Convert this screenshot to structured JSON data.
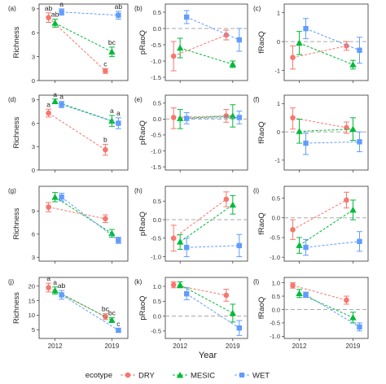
{
  "x_axis_title": "Year",
  "x_tick_labels": [
    "2012",
    "2019"
  ],
  "legend": {
    "title": "ecotype",
    "entries": [
      {
        "label": "DRY",
        "color": "#f8766d",
        "shape": "circle"
      },
      {
        "label": "MESIC",
        "color": "#00ba38",
        "shape": "triangle"
      },
      {
        "label": "WET",
        "color": "#619cff",
        "shape": "square"
      }
    ]
  },
  "chart_data": [
    {
      "id": "a",
      "panel_label": "(a)",
      "type": "scatter",
      "ylabel": "Richness",
      "yticks": [
        {
          "v": 0,
          "t": "0"
        },
        {
          "v": 3,
          "t": "3"
        },
        {
          "v": 6,
          "t": "6"
        },
        {
          "v": 9,
          "t": "9"
        }
      ],
      "ylim": [
        0,
        9.6
      ],
      "dashed_zero": false,
      "series": [
        {
          "name": "DRY",
          "x": [
            0,
            1
          ],
          "y": [
            7.9,
            1.2
          ],
          "lo": [
            7.3,
            0.9
          ],
          "hi": [
            8.5,
            1.5
          ],
          "letters": [
            "ab",
            "c"
          ]
        },
        {
          "name": "MESIC",
          "x": [
            0,
            1
          ],
          "y": [
            7.2,
            3.6
          ],
          "lo": [
            6.7,
            3.0
          ],
          "hi": [
            7.7,
            4.2
          ],
          "letters": [
            "ab",
            "bc"
          ]
        },
        {
          "name": "WET",
          "x": [
            0,
            1
          ],
          "y": [
            8.6,
            8.2
          ],
          "lo": [
            8.2,
            7.7
          ],
          "hi": [
            9.0,
            8.7
          ],
          "letters": [
            "a",
            "ab"
          ]
        }
      ]
    },
    {
      "id": "b",
      "panel_label": "(b)",
      "type": "scatter",
      "ylabel": "pRaoQ",
      "yticks": [
        {
          "v": 0.5,
          "t": "0.5"
        },
        {
          "v": 0,
          "t": "0.0"
        },
        {
          "v": -0.5,
          "t": "-0.5"
        },
        {
          "v": -1.0,
          "t": "-1.0"
        },
        {
          "v": -1.5,
          "t": "-1.5"
        }
      ],
      "ylim": [
        -1.6,
        0.75
      ],
      "dashed_zero": true,
      "series": [
        {
          "name": "DRY",
          "x": [
            0,
            1
          ],
          "y": [
            -0.85,
            -0.2
          ],
          "lo": [
            -1.3,
            -0.35
          ],
          "hi": [
            -0.4,
            -0.05
          ]
        },
        {
          "name": "MESIC",
          "x": [
            0,
            1
          ],
          "y": [
            -0.6,
            -1.1
          ],
          "lo": [
            -0.9,
            -1.2
          ],
          "hi": [
            -0.3,
            -1.0
          ]
        },
        {
          "name": "WET",
          "x": [
            0,
            1
          ],
          "y": [
            0.35,
            -0.35
          ],
          "lo": [
            0.15,
            -0.7
          ],
          "hi": [
            0.55,
            0.0
          ]
        }
      ]
    },
    {
      "id": "c",
      "panel_label": "(c)",
      "type": "scatter",
      "ylabel": "fRaoQ",
      "yticks": [
        {
          "v": 1,
          "t": "1"
        },
        {
          "v": 0,
          "t": "0"
        },
        {
          "v": -1,
          "t": "-1"
        }
      ],
      "ylim": [
        -1.35,
        1.3
      ],
      "dashed_zero": true,
      "series": [
        {
          "name": "DRY",
          "x": [
            0,
            1
          ],
          "y": [
            -0.55,
            -0.15
          ],
          "lo": [
            -0.95,
            -0.3
          ],
          "hi": [
            -0.15,
            0.0
          ]
        },
        {
          "name": "MESIC",
          "x": [
            0,
            1
          ],
          "y": [
            -0.05,
            -0.8
          ],
          "lo": [
            -0.45,
            -0.95
          ],
          "hi": [
            0.35,
            -0.65
          ]
        },
        {
          "name": "WET",
          "x": [
            0,
            1
          ],
          "y": [
            0.45,
            -0.3
          ],
          "lo": [
            0.1,
            -0.75
          ],
          "hi": [
            0.8,
            0.15
          ]
        }
      ]
    },
    {
      "id": "d",
      "panel_label": "(d)",
      "type": "scatter",
      "ylabel": "Richness",
      "yticks": [
        {
          "v": 0,
          "t": "0"
        },
        {
          "v": 3,
          "t": "3"
        },
        {
          "v": 6,
          "t": "6"
        },
        {
          "v": 9,
          "t": "9"
        }
      ],
      "ylim": [
        0,
        9.6
      ],
      "dashed_zero": false,
      "series": [
        {
          "name": "DRY",
          "x": [
            0,
            1
          ],
          "y": [
            7.3,
            2.6
          ],
          "lo": [
            6.8,
            1.9
          ],
          "hi": [
            7.8,
            3.3
          ],
          "letters": [
            "a",
            "b"
          ]
        },
        {
          "name": "MESIC",
          "x": [
            0,
            1
          ],
          "y": [
            8.8,
            6.3
          ],
          "lo": [
            8.5,
            5.6
          ],
          "hi": [
            9.1,
            7.0
          ],
          "letters": [
            "a",
            "a"
          ]
        },
        {
          "name": "WET",
          "x": [
            0,
            1
          ],
          "y": [
            8.4,
            6.0
          ],
          "lo": [
            8.0,
            5.3
          ],
          "hi": [
            8.8,
            6.7
          ],
          "letters": [
            "a",
            "a"
          ]
        }
      ]
    },
    {
      "id": "e",
      "panel_label": "(e)",
      "type": "scatter",
      "ylabel": "pRaoQ",
      "yticks": [
        {
          "v": 0.5,
          "t": "0.5"
        },
        {
          "v": 0,
          "t": "0.0"
        },
        {
          "v": -0.5,
          "t": "-0.5"
        },
        {
          "v": -1.0,
          "t": "-1.0"
        },
        {
          "v": -1.5,
          "t": "-1.5"
        }
      ],
      "ylim": [
        -1.6,
        0.75
      ],
      "dashed_zero": true,
      "series": [
        {
          "name": "DRY",
          "x": [
            0,
            1
          ],
          "y": [
            0.05,
            0.1
          ],
          "lo": [
            -0.3,
            -0.1
          ],
          "hi": [
            0.35,
            0.3
          ]
        },
        {
          "name": "MESIC",
          "x": [
            0,
            1
          ],
          "y": [
            0.02,
            0.1
          ],
          "lo": [
            -0.3,
            -0.25
          ],
          "hi": [
            0.3,
            0.45
          ]
        },
        {
          "name": "WET",
          "x": [
            0,
            1
          ],
          "y": [
            0.02,
            0.05
          ],
          "lo": [
            -0.15,
            -0.15
          ],
          "hi": [
            0.2,
            0.25
          ]
        }
      ]
    },
    {
      "id": "f",
      "panel_label": "(f)",
      "type": "scatter",
      "ylabel": "fRaoQ",
      "yticks": [
        {
          "v": 1,
          "t": "1"
        },
        {
          "v": 0,
          "t": "0"
        },
        {
          "v": -1,
          "t": "-1"
        }
      ],
      "ylim": [
        -1.35,
        1.3
      ],
      "dashed_zero": true,
      "series": [
        {
          "name": "DRY",
          "x": [
            0,
            1
          ],
          "y": [
            0.5,
            0.15
          ],
          "lo": [
            0.1,
            -0.05
          ],
          "hi": [
            0.85,
            0.35
          ]
        },
        {
          "name": "MESIC",
          "x": [
            0,
            1
          ],
          "y": [
            0.02,
            0.1
          ],
          "lo": [
            -0.4,
            -0.3
          ],
          "hi": [
            0.45,
            0.5
          ]
        },
        {
          "name": "WET",
          "x": [
            0,
            1
          ],
          "y": [
            -0.4,
            -0.35
          ],
          "lo": [
            -0.8,
            -0.7
          ],
          "hi": [
            -0.05,
            0.0
          ]
        }
      ]
    },
    {
      "id": "g",
      "panel_label": "(g)",
      "type": "scatter",
      "ylabel": "Richness",
      "yticks": [
        {
          "v": 0,
          "t": "0"
        },
        {
          "v": 3,
          "t": "3"
        },
        {
          "v": 6,
          "t": "6"
        },
        {
          "v": 9,
          "t": "9"
        }
      ],
      "ylim": [
        2.5,
        12.2
      ],
      "dashed_zero": false,
      "series": [
        {
          "name": "DRY",
          "x": [
            0,
            1
          ],
          "y": [
            9.5,
            8.0
          ],
          "lo": [
            8.9,
            7.5
          ],
          "hi": [
            10.1,
            8.5
          ]
        },
        {
          "name": "MESIC",
          "x": [
            0,
            1
          ],
          "y": [
            10.8,
            6.1
          ],
          "lo": [
            10.2,
            5.6
          ],
          "hi": [
            11.4,
            6.6
          ]
        },
        {
          "name": "WET",
          "x": [
            0,
            1
          ],
          "y": [
            10.8,
            5.2
          ],
          "lo": [
            10.3,
            4.8
          ],
          "hi": [
            11.3,
            5.6
          ]
        }
      ]
    },
    {
      "id": "h",
      "panel_label": "(h)",
      "type": "scatter",
      "ylabel": "pRaoQ",
      "yticks": [
        {
          "v": 0.5,
          "t": "0.5"
        },
        {
          "v": 0,
          "t": "0.0"
        },
        {
          "v": -0.5,
          "t": "-0.5"
        },
        {
          "v": -1.0,
          "t": "-1.0"
        }
      ],
      "ylim": [
        -1.12,
        0.9
      ],
      "dashed_zero": true,
      "series": [
        {
          "name": "DRY",
          "x": [
            0,
            1
          ],
          "y": [
            -0.5,
            0.55
          ],
          "lo": [
            -0.85,
            0.35
          ],
          "hi": [
            -0.15,
            0.75
          ]
        },
        {
          "name": "MESIC",
          "x": [
            0,
            1
          ],
          "y": [
            -0.6,
            0.4
          ],
          "lo": [
            -0.8,
            0.15
          ],
          "hi": [
            -0.4,
            0.65
          ]
        },
        {
          "name": "WET",
          "x": [
            0,
            1
          ],
          "y": [
            -0.75,
            -0.7
          ],
          "lo": [
            -1.0,
            -1.0
          ],
          "hi": [
            -0.5,
            -0.4
          ]
        }
      ]
    },
    {
      "id": "i",
      "panel_label": "(i)",
      "type": "scatter",
      "ylabel": "fRaoQ",
      "yticks": [
        {
          "v": 0.5,
          "t": "0.5"
        },
        {
          "v": 0,
          "t": "0.0"
        },
        {
          "v": -0.5,
          "t": "-0.5"
        },
        {
          "v": -1.0,
          "t": "-1.0"
        }
      ],
      "ylim": [
        -1.1,
        0.8
      ],
      "dashed_zero": true,
      "series": [
        {
          "name": "DRY",
          "x": [
            0,
            1
          ],
          "y": [
            -0.3,
            0.45
          ],
          "lo": [
            -0.55,
            0.25
          ],
          "hi": [
            -0.05,
            0.65
          ]
        },
        {
          "name": "MESIC",
          "x": [
            0,
            1
          ],
          "y": [
            -0.7,
            0.2
          ],
          "lo": [
            -0.9,
            -0.05
          ],
          "hi": [
            -0.5,
            0.45
          ]
        },
        {
          "name": "WET",
          "x": [
            0,
            1
          ],
          "y": [
            -0.75,
            -0.6
          ],
          "lo": [
            -0.95,
            -0.85
          ],
          "hi": [
            -0.55,
            -0.35
          ]
        }
      ]
    },
    {
      "id": "j",
      "panel_label": "(j)",
      "type": "scatter",
      "ylabel": "Richness",
      "yticks": [
        {
          "v": 0,
          "t": "0"
        },
        {
          "v": 5,
          "t": "5"
        },
        {
          "v": 10,
          "t": "10"
        },
        {
          "v": 15,
          "t": "15"
        },
        {
          "v": 20,
          "t": "20"
        }
      ],
      "ylim": [
        2.0,
        23.0
      ],
      "dashed_zero": false,
      "series": [
        {
          "name": "DRY",
          "x": [
            0,
            1
          ],
          "y": [
            19.5,
            9.5
          ],
          "lo": [
            18.0,
            8.5
          ],
          "hi": [
            21.0,
            10.5
          ],
          "letters": [
            "a",
            "bc"
          ]
        },
        {
          "name": "MESIC",
          "x": [
            0,
            1
          ],
          "y": [
            18.5,
            8.3
          ],
          "lo": [
            17.3,
            7.5
          ],
          "hi": [
            19.7,
            9.1
          ],
          "letters": [
            "a",
            "bc"
          ]
        },
        {
          "name": "WET",
          "x": [
            0,
            1
          ],
          "y": [
            17.0,
            4.8
          ],
          "lo": [
            15.5,
            4.2
          ],
          "hi": [
            18.5,
            5.4
          ],
          "letters": [
            "ab",
            "c"
          ]
        }
      ]
    },
    {
      "id": "k",
      "panel_label": "(k)",
      "type": "scatter",
      "ylabel": "pRaoQ",
      "yticks": [
        {
          "v": 1.0,
          "t": "1.0"
        },
        {
          "v": 0.5,
          "t": "0.5"
        },
        {
          "v": 0,
          "t": "0.0"
        },
        {
          "v": -0.5,
          "t": "-0.5"
        }
      ],
      "ylim": [
        -0.75,
        1.3
      ],
      "dashed_zero": true,
      "series": [
        {
          "name": "DRY",
          "x": [
            0,
            1
          ],
          "y": [
            1.05,
            0.7
          ],
          "lo": [
            0.95,
            0.5
          ],
          "hi": [
            1.15,
            0.9
          ]
        },
        {
          "name": "MESIC",
          "x": [
            0,
            1
          ],
          "y": [
            1.05,
            0.1
          ],
          "lo": [
            0.95,
            -0.2
          ],
          "hi": [
            1.15,
            0.4
          ]
        },
        {
          "name": "WET",
          "x": [
            0,
            1
          ],
          "y": [
            0.75,
            -0.4
          ],
          "lo": [
            0.55,
            -0.65
          ],
          "hi": [
            0.95,
            -0.15
          ]
        }
      ]
    },
    {
      "id": "l",
      "panel_label": "(l)",
      "type": "scatter",
      "ylabel": "fRaoQ",
      "yticks": [
        {
          "v": 1.0,
          "t": "1.0"
        },
        {
          "v": 0.5,
          "t": "0.5"
        },
        {
          "v": 0,
          "t": "0.0"
        },
        {
          "v": -0.5,
          "t": "-0.5"
        },
        {
          "v": -1.0,
          "t": "-1.0"
        }
      ],
      "ylim": [
        -1.08,
        1.2
      ],
      "dashed_zero": true,
      "series": [
        {
          "name": "DRY",
          "x": [
            0,
            1
          ],
          "y": [
            0.9,
            0.35
          ],
          "lo": [
            0.8,
            0.2
          ],
          "hi": [
            1.0,
            0.5
          ]
        },
        {
          "name": "MESIC",
          "x": [
            0,
            1
          ],
          "y": [
            0.6,
            -0.3
          ],
          "lo": [
            0.45,
            -0.5
          ],
          "hi": [
            0.75,
            -0.1
          ]
        },
        {
          "name": "WET",
          "x": [
            0,
            1
          ],
          "y": [
            0.55,
            -0.65
          ],
          "lo": [
            0.45,
            -0.8
          ],
          "hi": [
            0.65,
            -0.5
          ]
        }
      ]
    }
  ]
}
